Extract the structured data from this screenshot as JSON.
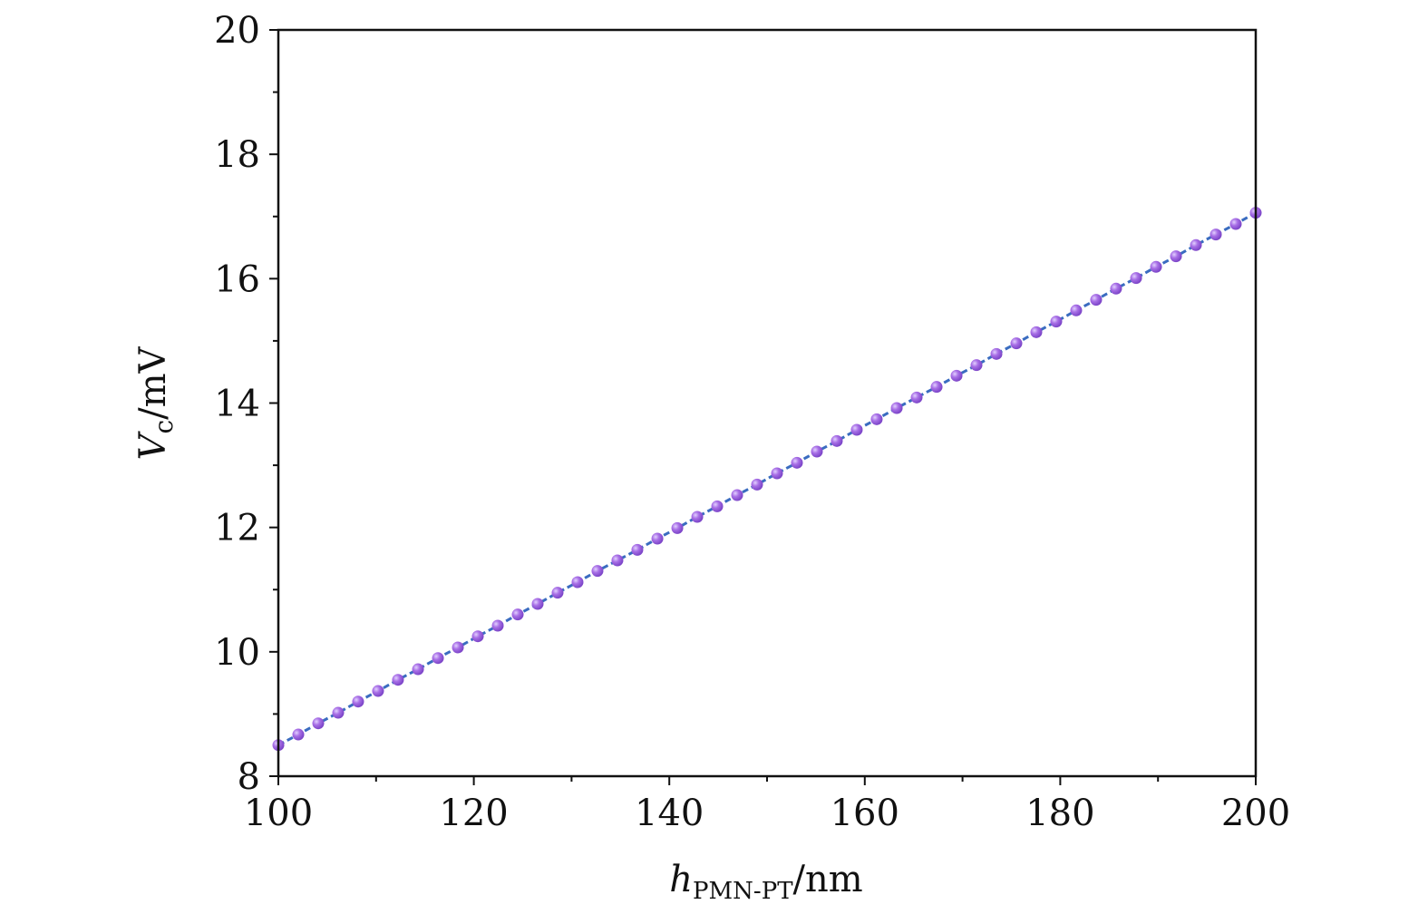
{
  "chart_data": {
    "type": "scatter",
    "xlabel": {
      "main": "h",
      "sub": "PMN-PT",
      "unit": "/nm"
    },
    "ylabel": {
      "main": "V",
      "sub": "c",
      "unit": "/mV"
    },
    "xlim": [
      100,
      200
    ],
    "ylim": [
      8,
      20
    ],
    "xticks": [
      100,
      120,
      140,
      160,
      180,
      200
    ],
    "yticks": [
      8,
      10,
      12,
      14,
      16,
      18,
      20
    ],
    "x_minor_step": 10,
    "y_minor_step": 1,
    "grid": false,
    "legend": "none",
    "series": [
      {
        "style": "markers with dashed fit line",
        "marker_color": "#a070e0",
        "line_color": "#3a6cc0",
        "x": [
          100.0,
          102.04,
          104.08,
          106.12,
          108.16,
          110.2,
          112.24,
          114.29,
          116.33,
          118.37,
          120.41,
          122.45,
          124.49,
          126.53,
          128.57,
          130.61,
          132.65,
          134.69,
          136.73,
          138.78,
          140.82,
          142.86,
          144.9,
          146.94,
          148.98,
          151.02,
          153.06,
          155.1,
          157.14,
          159.18,
          161.22,
          163.27,
          165.31,
          167.35,
          169.39,
          171.43,
          173.47,
          175.51,
          177.55,
          179.59,
          181.63,
          183.67,
          185.71,
          187.76,
          189.8,
          191.84,
          193.88,
          195.92,
          197.96,
          200.0
        ],
        "y": [
          8.5,
          8.67,
          8.85,
          9.02,
          9.2,
          9.37,
          9.55,
          9.72,
          9.9,
          10.07,
          10.25,
          10.42,
          10.6,
          10.77,
          10.95,
          11.12,
          11.3,
          11.47,
          11.64,
          11.82,
          11.99,
          12.17,
          12.34,
          12.52,
          12.69,
          12.87,
          13.04,
          13.22,
          13.39,
          13.57,
          13.74,
          13.92,
          14.09,
          14.26,
          14.44,
          14.61,
          14.79,
          14.96,
          15.14,
          15.31,
          15.49,
          15.66,
          15.84,
          16.01,
          16.19,
          16.36,
          16.54,
          16.71,
          16.88,
          17.06
        ]
      }
    ]
  }
}
